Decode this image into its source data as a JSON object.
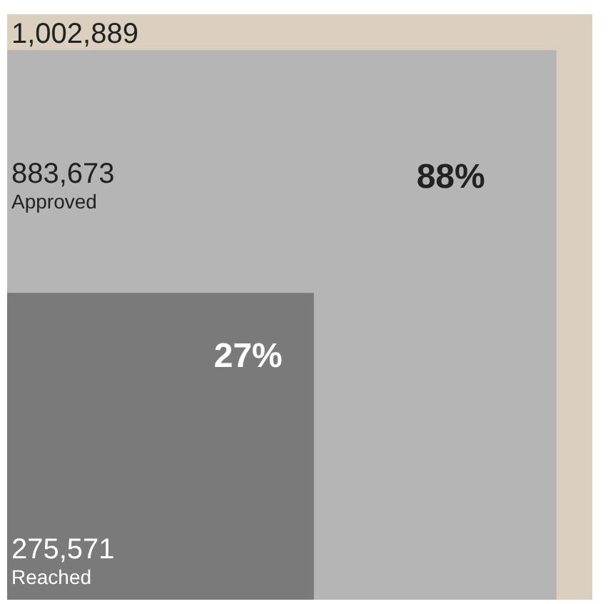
{
  "chart_data": {
    "type": "other",
    "categories": [
      null,
      "Approved",
      "Reached"
    ],
    "values": [
      1002889,
      883673,
      275571
    ],
    "value_labels": [
      "1,002,889",
      "883,673",
      "275,571"
    ],
    "colors": [
      "#dbcfc0",
      "#b5b5b5",
      "#7a7a7a"
    ],
    "annotations": [
      "88%",
      "27%"
    ]
  }
}
